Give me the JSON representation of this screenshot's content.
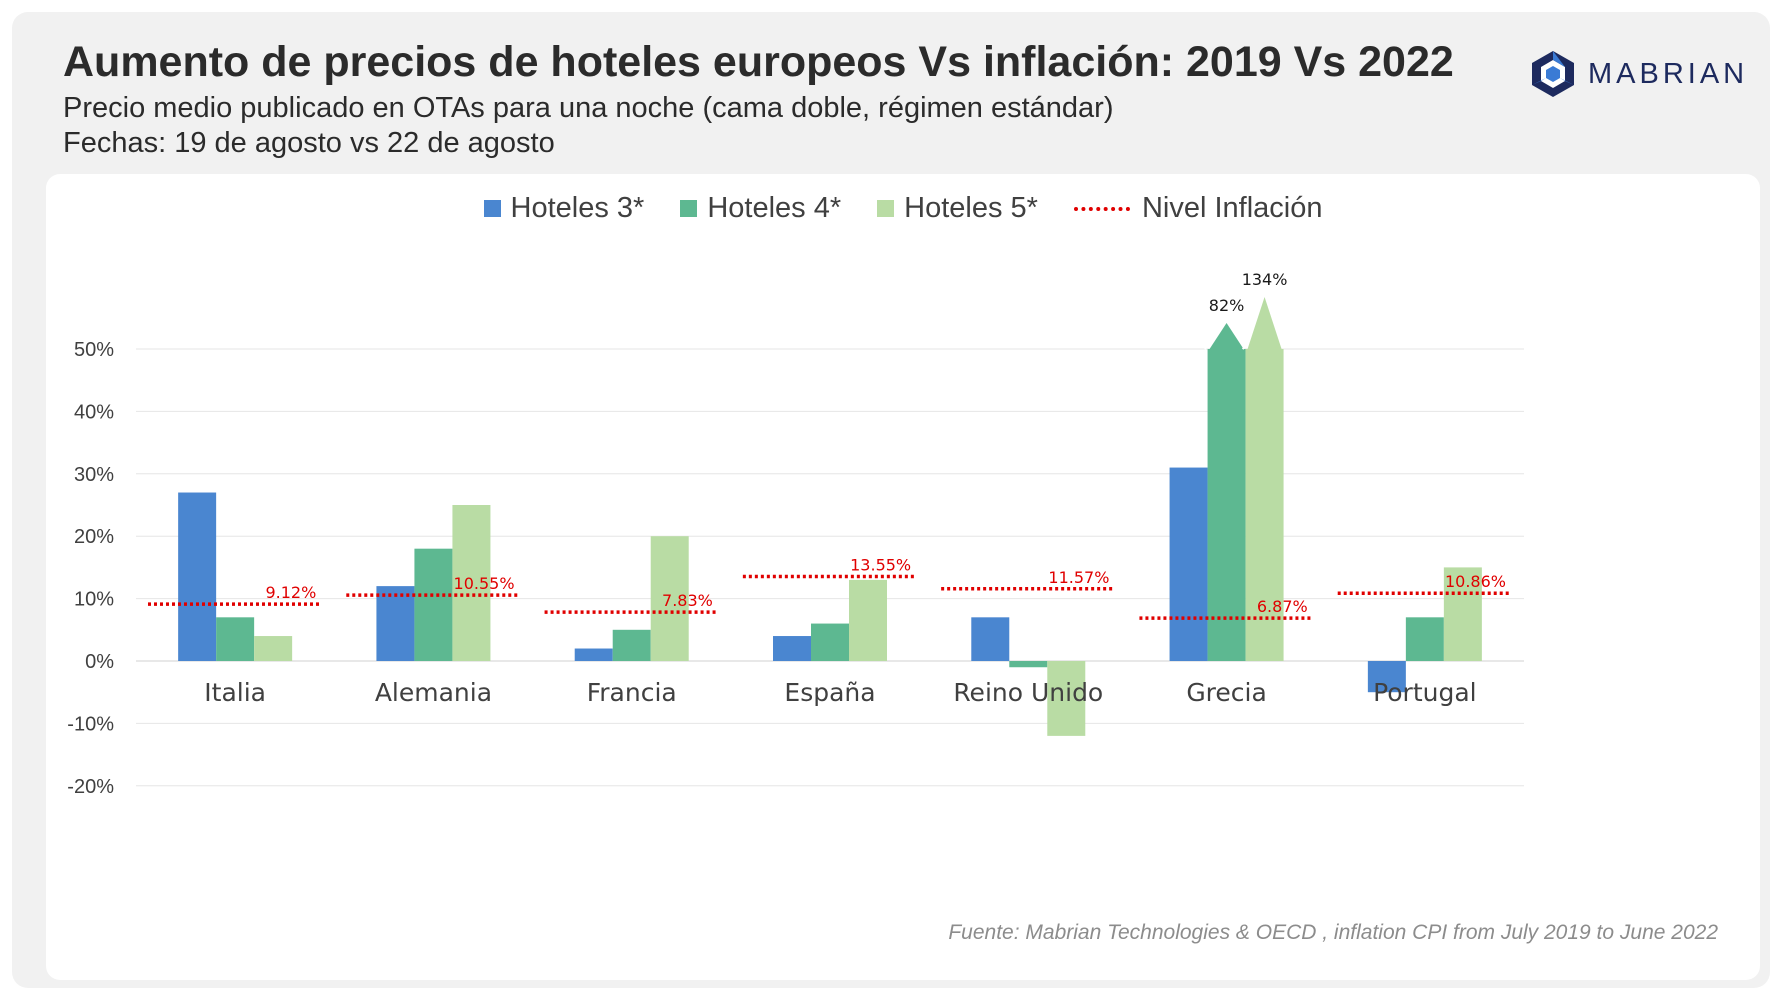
{
  "header": {
    "title": "Aumento de precios de hoteles europeos Vs inflación: 2019 Vs 2022",
    "subtitle1": "Precio medio publicado en OTAs para una noche (cama doble, régimen estándar)",
    "subtitle2": "Fechas: 19 de agosto vs 22 de agosto",
    "logo_text": "MABRIAN"
  },
  "source": "Fuente: Mabrian Technologies & OECD , inflation CPI from July 2019 to June 2022",
  "colors": {
    "hoteles3": "#4a86d0",
    "hoteles4": "#5db891",
    "hoteles5": "#b9dca4",
    "inflation": "#e00000",
    "logo": "#1d2a5e"
  },
  "chart_data": {
    "type": "bar",
    "categories": [
      "Italia",
      "Alemania",
      "Francia",
      "España",
      "Reino Unido",
      "Grecia",
      "Portugal"
    ],
    "series": [
      {
        "name": "Hoteles 3*",
        "values": [
          27,
          12,
          2,
          4,
          7,
          31,
          -5
        ]
      },
      {
        "name": "Hoteles 4*",
        "values": [
          7,
          18,
          5,
          6,
          -1,
          82,
          7
        ]
      },
      {
        "name": "Hoteles 5*",
        "values": [
          4,
          25,
          20,
          13,
          -12,
          134,
          15
        ]
      }
    ],
    "inflation": {
      "name": "Nivel Inflación",
      "values": [
        9.12,
        10.55,
        7.83,
        13.55,
        11.57,
        6.87,
        10.86
      ],
      "labels": [
        "9.12%",
        "10.55%",
        "7.83%",
        "13.55%",
        "11.57%",
        "6.87%",
        "10.86%"
      ]
    },
    "bar_labels": [
      {
        "category": "Grecia",
        "series": "Hoteles 4*",
        "label": "82%"
      },
      {
        "category": "Grecia",
        "series": "Hoteles 5*",
        "label": "134%"
      }
    ],
    "yticks": [
      50,
      40,
      30,
      20,
      10,
      0,
      -10,
      -20
    ],
    "ytick_labels": [
      "50%",
      "40%",
      "30%",
      "20%",
      "10%",
      "0%",
      "-10%",
      "-20%"
    ],
    "ylim": [
      -20,
      50
    ],
    "axis_break": true,
    "grid": true,
    "legend": "top-center"
  }
}
